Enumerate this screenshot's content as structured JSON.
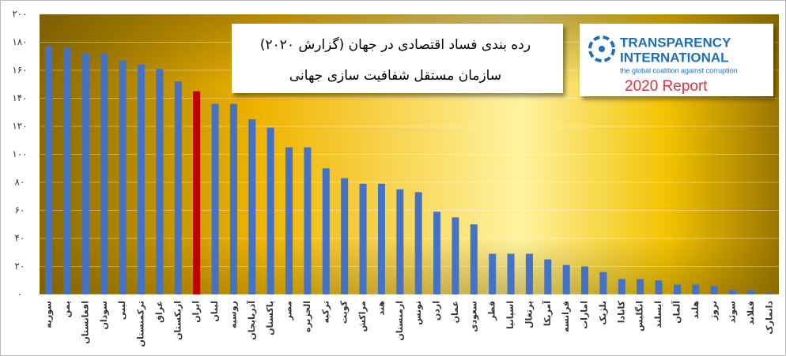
{
  "chart_data": {
    "type": "bar",
    "title": "رده بندی فساد اقتصادی در جهان (گزارش ۲۰۲۰)",
    "subtitle": "سازمان مستقل شفافیت سازی جهانی",
    "categories": [
      "سوریه",
      "یمن",
      "افغانستان",
      "سودان",
      "لیبی",
      "ترکمنستان",
      "عراق",
      "ازبکستان",
      "ایران",
      "لبنان",
      "روسیه",
      "آذربایجان",
      "پاکستان",
      "مصر",
      "الجزیره",
      "ترکیه",
      "کویت",
      "مراکش",
      "هند",
      "ارمنستان",
      "تونس",
      "اردن",
      "عمان",
      "سعودی",
      "قطر",
      "اسپانیا",
      "پرتغال",
      "آمریکا",
      "فرانسه",
      "امارات",
      "بلژیک",
      "کانادا",
      "انگلیس",
      "ایسلند",
      "آلمان",
      "هلند",
      "نروژ",
      "سوئد",
      "فنلاند",
      "دانمارک"
    ],
    "values": [
      177,
      176,
      172,
      172,
      167,
      164,
      161,
      152,
      145,
      136,
      136,
      125,
      119,
      105,
      105,
      90,
      83,
      79,
      79,
      75,
      73,
      59,
      55,
      50,
      29,
      29,
      29,
      25,
      21,
      20,
      16,
      11,
      11,
      10,
      7,
      7,
      6,
      3,
      3,
      1
    ],
    "colors": [
      "#4472c4",
      "#4472c4",
      "#4472c4",
      "#4472c4",
      "#4472c4",
      "#4472c4",
      "#4472c4",
      "#4472c4",
      "#c00000",
      "#4472c4",
      "#4472c4",
      "#4472c4",
      "#4472c4",
      "#4472c4",
      "#4472c4",
      "#4472c4",
      "#4472c4",
      "#4472c4",
      "#4472c4",
      "#4472c4",
      "#4472c4",
      "#4472c4",
      "#4472c4",
      "#4472c4",
      "#4472c4",
      "#4472c4",
      "#4472c4",
      "#4472c4",
      "#4472c4",
      "#4472c4",
      "#4472c4",
      "#4472c4",
      "#4472c4",
      "#4472c4",
      "#4472c4",
      "#4472c4",
      "#4472c4",
      "#4472c4",
      "#4472c4",
      "#4472c4"
    ],
    "ylim": [
      0,
      200
    ],
    "yticks": [
      {
        "value": 0,
        "label": "۰"
      },
      {
        "value": 20,
        "label": "۲۰"
      },
      {
        "value": 40,
        "label": "۴۰"
      },
      {
        "value": 60,
        "label": "۶۰"
      },
      {
        "value": 80,
        "label": "۸۰"
      },
      {
        "value": 100,
        "label": "۱۰۰"
      },
      {
        "value": 120,
        "label": "۱۲۰"
      },
      {
        "value": 140,
        "label": "۱۴۰"
      },
      {
        "value": 160,
        "label": "۱۶۰"
      },
      {
        "value": 180,
        "label": "۱۸۰"
      },
      {
        "value": 200,
        "label": "۲۰۰"
      }
    ],
    "grid": true
  },
  "logo": {
    "lines": [
      "TRANSPARENCY",
      "INTERNATIONAL"
    ],
    "tagline": "the global coalition against corruption",
    "report": "2020 Report"
  }
}
